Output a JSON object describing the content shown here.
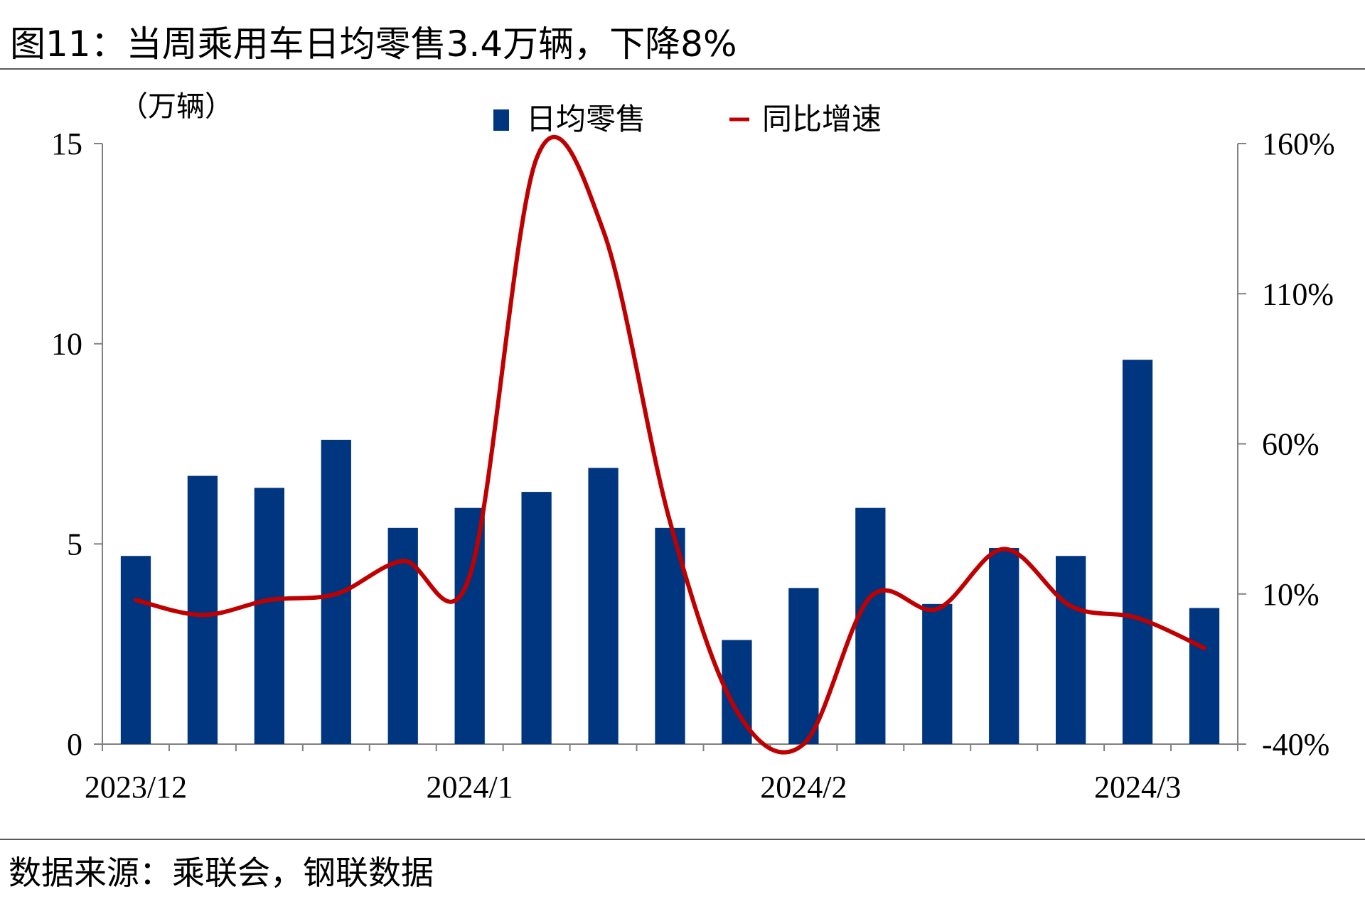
{
  "title": "图11：当周乘用车日均零售3.4万辆，下降8%",
  "source": "数据来源：乘联会，钢联数据",
  "colors": {
    "bar": "#003580",
    "line": "#c00000",
    "axis": "#808080"
  },
  "chart_data": {
    "type": "bar+line",
    "unit_label": "（万辆）",
    "categories": [
      "",
      "",
      "",
      "",
      "",
      "",
      "",
      "",
      "",
      "",
      "",
      "",
      "",
      "",
      "",
      "",
      ""
    ],
    "x_tick_labels": [
      {
        "index": 0,
        "label": "2023/12"
      },
      {
        "index": 5,
        "label": "2024/1"
      },
      {
        "index": 10,
        "label": "2024/2"
      },
      {
        "index": 15,
        "label": "2024/3"
      }
    ],
    "series": [
      {
        "name": "日均零售",
        "type": "bar",
        "axis": "left",
        "values": [
          4.7,
          6.7,
          6.4,
          7.6,
          5.4,
          5.9,
          6.3,
          6.9,
          5.4,
          2.6,
          3.9,
          5.9,
          3.5,
          4.9,
          4.7,
          9.6,
          3.4
        ]
      },
      {
        "name": "同比增速",
        "type": "line",
        "axis": "right",
        "unit": "%",
        "values": [
          8,
          3,
          8,
          10,
          21,
          16,
          155,
          131,
          34,
          -29,
          -40,
          9,
          5,
          25,
          6,
          2,
          -8
        ]
      }
    ],
    "y_left": {
      "min": 0,
      "max": 15,
      "ticks": [
        "0",
        "5",
        "10",
        "15"
      ]
    },
    "y_right": {
      "min": -40,
      "max": 160,
      "ticks": [
        "-40%",
        "10%",
        "60%",
        "110%",
        "160%"
      ]
    },
    "legend_position": "top-center",
    "grid": false
  }
}
